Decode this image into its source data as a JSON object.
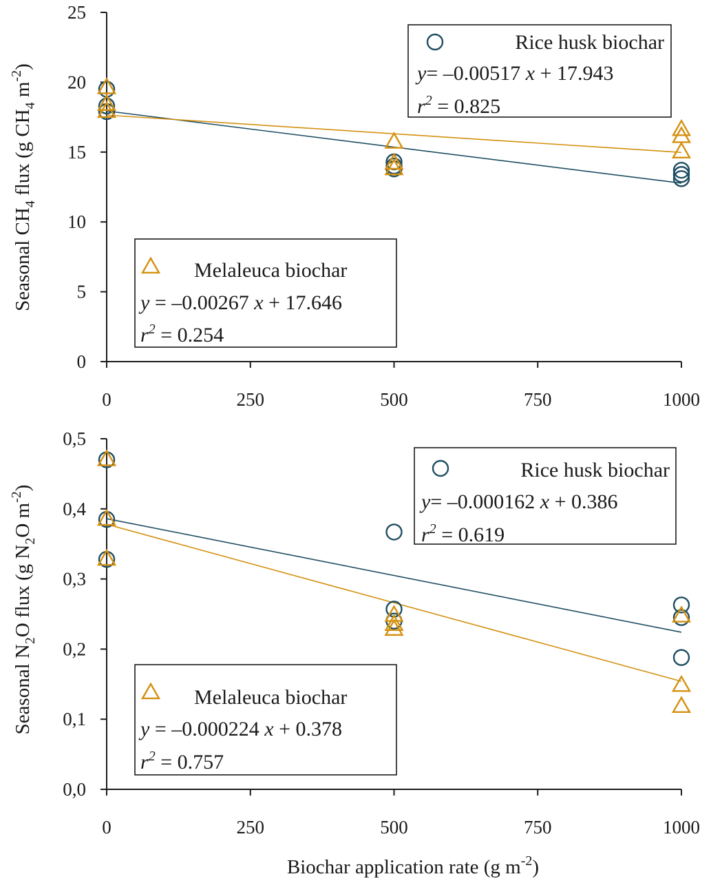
{
  "chart_data": [
    {
      "type": "scatter",
      "ylabel": {
        "prefix": "Seasonal CH",
        "sub1": "4",
        "mid": " flux (g CH",
        "sub2": "4",
        "suffix": " m",
        "sup": "-2",
        "end": ")"
      },
      "xlabel": "",
      "xlim": [
        0,
        1000
      ],
      "ylim": [
        0,
        25
      ],
      "x_ticks": [
        "0",
        "250",
        "500",
        "750",
        "1000"
      ],
      "y_ticks": [
        "0",
        "5",
        "10",
        "15",
        "20",
        "25"
      ],
      "series": [
        {
          "name": "Rice husk biochar",
          "marker": "circle",
          "color": "#1f4e63",
          "x": [
            0,
            0,
            0,
            500,
            500,
            500,
            1000,
            1000,
            1000
          ],
          "y": [
            19.5,
            18.3,
            17.9,
            14.3,
            14.0,
            13.8,
            13.7,
            13.4,
            13.1
          ],
          "fit": {
            "slope": -0.00517,
            "intercept": 17.943
          },
          "equation": {
            "y": "y",
            "rhs": "= –0.00517 ",
            "x": "x",
            "tail": " + 17.943"
          },
          "r2": {
            "r": "r",
            "sup": "2",
            "rhs": " = 0.825"
          }
        },
        {
          "name": "Melaleuca biochar",
          "marker": "triangle",
          "color": "#d4900f",
          "x": [
            0,
            0,
            0,
            500,
            500,
            500,
            1000,
            1000,
            1000
          ],
          "y": [
            19.6,
            18.4,
            17.9,
            15.7,
            14.2,
            13.8,
            16.6,
            16.1,
            15.0
          ],
          "fit": {
            "slope": -0.00267,
            "intercept": 17.646
          },
          "equation": {
            "y": "y",
            "rhs": " = –0.00267 ",
            "x": "x",
            "tail": " + 17.646"
          },
          "r2": {
            "r": "r",
            "sup": "2",
            "rhs": " = 0.254"
          }
        }
      ]
    },
    {
      "type": "scatter",
      "ylabel": {
        "prefix": "Seasonal N",
        "sub1": "2",
        "mid": "O flux (g N",
        "sub2": "2",
        "suffix": "O m",
        "sup": "-2",
        "end": ")"
      },
      "xlabel": {
        "text": "Biochar application rate (g m",
        "sup": "-2",
        "end": ")"
      },
      "xlim": [
        0,
        1000
      ],
      "ylim": [
        0,
        0.5
      ],
      "x_ticks": [
        "0",
        "250",
        "500",
        "750",
        "1000"
      ],
      "y_ticks": [
        "0,0",
        "0,1",
        "0,2",
        "0,3",
        "0,4",
        "0,5"
      ],
      "series": [
        {
          "name": "Rice husk biochar",
          "marker": "circle",
          "color": "#1f4e63",
          "x": [
            0,
            0,
            0,
            500,
            500,
            500,
            1000,
            1000,
            1000
          ],
          "y": [
            0.47,
            0.385,
            0.328,
            0.367,
            0.257,
            0.24,
            0.263,
            0.245,
            0.188
          ],
          "fit": {
            "slope": -0.000162,
            "intercept": 0.386
          },
          "equation": {
            "y": "y",
            "rhs": "= –0.000162 ",
            "x": "x",
            "tail": " + 0.386"
          },
          "r2": {
            "r": "r",
            "sup": "2",
            "rhs": " = 0.619"
          }
        },
        {
          "name": "Melaleuca biochar",
          "marker": "triangle",
          "color": "#d4900f",
          "x": [
            0,
            0,
            0,
            500,
            500,
            500,
            1000,
            1000,
            1000
          ],
          "y": [
            0.47,
            0.385,
            0.328,
            0.248,
            0.235,
            0.228,
            0.247,
            0.148,
            0.118
          ],
          "fit": {
            "slope": -0.000224,
            "intercept": 0.378
          },
          "equation": {
            "y": "y",
            "rhs": " = –0.000224 ",
            "x": "x",
            "tail": " + 0.378"
          },
          "r2": {
            "r": "r",
            "sup": "2",
            "rhs": " = 0.757"
          }
        }
      ]
    }
  ]
}
